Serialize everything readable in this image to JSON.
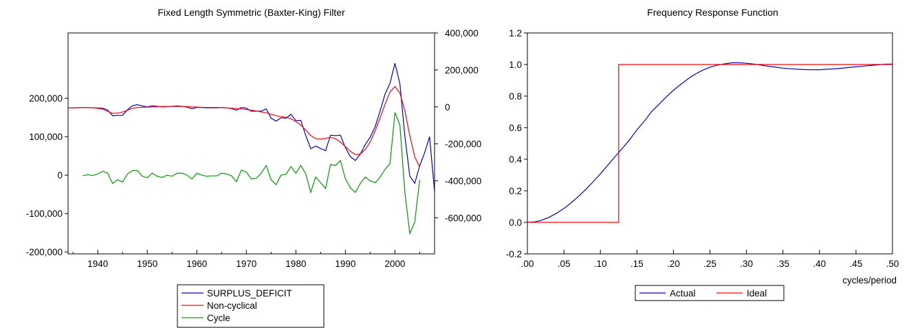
{
  "chart_data": [
    {
      "type": "line",
      "title": "Fixed Length Symmetric (Baxter-King) Filter",
      "xlabel": "",
      "xlim": [
        1934,
        2008
      ],
      "x_ticks": [
        1940,
        1950,
        1960,
        1970,
        1980,
        1990,
        2000
      ],
      "left_axis": {
        "ylim": [
          -200000,
          0
        ],
        "ylim_note": "",
        "ticks": [
          {
            "value": -200000,
            "label": "-200,000"
          },
          {
            "value": -100000,
            "label": "-100,000"
          },
          {
            "value": 0,
            "label": "0"
          },
          {
            "value": 100000,
            "label": "100,000"
          },
          {
            "value": 200000,
            "label": "200,000"
          }
        ],
        "range": [
          -205000,
          370000
        ]
      },
      "right_axis": {
        "range": [
          -795000,
          400000
        ],
        "ticks": [
          {
            "value": 400000,
            "label": "400,000"
          },
          {
            "value": 200000,
            "label": "200,000"
          },
          {
            "value": 0,
            "label": "0"
          },
          {
            "value": -200000,
            "label": "-200,000"
          },
          {
            "value": -400000,
            "label": "-400,000"
          },
          {
            "value": -600000,
            "label": "-600,000"
          }
        ]
      },
      "legend": [
        "SURPLUS_DEFICIT",
        "Non-cyclical",
        "Cycle"
      ],
      "legend_position": "bottom",
      "series": [
        {
          "name": "SURPLUS_DEFICIT",
          "axis": "right",
          "color": "#0000cc",
          "x": [
            1934,
            1935,
            1936,
            1937,
            1938,
            1939,
            1940,
            1941,
            1942,
            1943,
            1944,
            1945,
            1946,
            1947,
            1948,
            1949,
            1950,
            1951,
            1952,
            1953,
            1954,
            1955,
            1956,
            1957,
            1958,
            1959,
            1960,
            1961,
            1962,
            1963,
            1964,
            1965,
            1966,
            1967,
            1968,
            1969,
            1970,
            1971,
            1972,
            1973,
            1974,
            1975,
            1976,
            1977,
            1978,
            1979,
            1980,
            1981,
            1982,
            1983,
            1984,
            1985,
            1986,
            1987,
            1988,
            1989,
            1990,
            1991,
            1992,
            1993,
            1994,
            1995,
            1996,
            1997,
            1998,
            1999,
            2000,
            2001,
            2002,
            2003,
            2004,
            2005,
            2006,
            2007,
            2008
          ],
          "values": [
            -5000,
            -5000,
            -5000,
            -3000,
            -4000,
            -5000,
            -6000,
            -7000,
            -17000,
            -48000,
            -46000,
            -46000,
            -15000,
            6000,
            12000,
            5000,
            0,
            6000,
            3000,
            0,
            1000,
            3000,
            5000,
            3000,
            -1000,
            -10000,
            -3000,
            -3000,
            -5000,
            -5000,
            -5000,
            -3000,
            -5000,
            -9000,
            -18000,
            -3000,
            -7000,
            -23000,
            -23000,
            -23000,
            -11000,
            -61000,
            -77000,
            -59000,
            -61000,
            -40000,
            -74000,
            -73000,
            -155000,
            -226000,
            -212000,
            -225000,
            -237000,
            -153000,
            -156000,
            -153000,
            -221000,
            -269000,
            -290000,
            -255000,
            -204000,
            -164000,
            -107000,
            -22000,
            69000,
            128000,
            236000,
            125000,
            -158000,
            -374000,
            -413000,
            -318000,
            -248000,
            -161000,
            -459000
          ]
        },
        {
          "name": "Non-cyclical",
          "axis": "right",
          "color": "#ff0000",
          "x": [
            1934,
            1935,
            1936,
            1937,
            1938,
            1939,
            1940,
            1941,
            1942,
            1943,
            1944,
            1945,
            1946,
            1947,
            1948,
            1949,
            1950,
            1951,
            1952,
            1953,
            1954,
            1955,
            1956,
            1957,
            1958,
            1959,
            1960,
            1961,
            1962,
            1963,
            1964,
            1965,
            1966,
            1967,
            1968,
            1969,
            1970,
            1971,
            1972,
            1973,
            1974,
            1975,
            1976,
            1977,
            1978,
            1979,
            1980,
            1981,
            1982,
            1983,
            1984,
            1985,
            1986,
            1987,
            1988,
            1989,
            1990,
            1991,
            1992,
            1993,
            1994,
            1995,
            1996,
            1997,
            1998,
            1999,
            2000,
            2001,
            2002,
            2003,
            2004,
            2005
          ],
          "values": [
            -5000,
            -5000,
            -4000,
            -3000,
            -4000,
            -5000,
            -8000,
            -12000,
            -25000,
            -35000,
            -34000,
            -28000,
            -18000,
            -8000,
            -3000,
            -2000,
            -1000,
            0,
            1000,
            2000,
            2000,
            2000,
            2000,
            2000,
            1000,
            0,
            -1000,
            -2000,
            -3000,
            -3000,
            -3000,
            -4000,
            -5000,
            -7000,
            -9000,
            -11000,
            -14000,
            -18000,
            -22000,
            -27000,
            -32000,
            -40000,
            -48000,
            -52000,
            -56000,
            -64000,
            -80000,
            -98000,
            -125000,
            -155000,
            -172000,
            -175000,
            -170000,
            -165000,
            -172000,
            -190000,
            -215000,
            -240000,
            -258000,
            -255000,
            -230000,
            -190000,
            -130000,
            -60000,
            15000,
            80000,
            110000,
            75000,
            -20000,
            -155000,
            -270000,
            -325000
          ]
        },
        {
          "name": "Cycle",
          "axis": "left",
          "color": "#009900",
          "x": [
            1937,
            1938,
            1939,
            1940,
            1941,
            1942,
            1943,
            1944,
            1945,
            1946,
            1947,
            1948,
            1949,
            1950,
            1951,
            1952,
            1953,
            1954,
            1955,
            1956,
            1957,
            1958,
            1959,
            1960,
            1961,
            1962,
            1963,
            1964,
            1965,
            1966,
            1967,
            1968,
            1969,
            1970,
            1971,
            1972,
            1973,
            1974,
            1975,
            1976,
            1977,
            1978,
            1979,
            1980,
            1981,
            1982,
            1983,
            1984,
            1985,
            1986,
            1987,
            1988,
            1989,
            1990,
            1991,
            1992,
            1993,
            1994,
            1995,
            1996,
            1997,
            1998,
            1999,
            2000,
            2001,
            2002,
            2003,
            2004,
            2005
          ],
          "values": [
            -1000,
            1000,
            -1000,
            3000,
            10000,
            5000,
            -22000,
            -12000,
            -18000,
            3000,
            12000,
            12000,
            -3000,
            -7000,
            5000,
            -3000,
            -6000,
            0,
            -3000,
            5000,
            5000,
            0,
            -10000,
            5000,
            0,
            -3000,
            -2000,
            -2000,
            5000,
            3000,
            -2000,
            -17000,
            13000,
            8000,
            -10000,
            -8000,
            5000,
            25000,
            -12000,
            -25000,
            0,
            2000,
            22000,
            5000,
            25000,
            3000,
            -45000,
            -5000,
            -20000,
            -35000,
            28000,
            25000,
            38000,
            -10000,
            -33000,
            -45000,
            -22000,
            -5000,
            -15000,
            -20000,
            -5000,
            15000,
            30000,
            163000,
            130000,
            -45000,
            -152000,
            -122000,
            -12000
          ]
        }
      ]
    },
    {
      "type": "line",
      "title": "Frequency Response Function",
      "xlabel": "cycles/period",
      "ylabel": "",
      "xlim": [
        0,
        0.5
      ],
      "ylim": [
        -0.2,
        1.2
      ],
      "x_ticks": [
        {
          "value": 0.0,
          "label": ".00"
        },
        {
          "value": 0.05,
          "label": ".05"
        },
        {
          "value": 0.1,
          "label": ".10"
        },
        {
          "value": 0.15,
          "label": ".15"
        },
        {
          "value": 0.2,
          "label": ".20"
        },
        {
          "value": 0.25,
          "label": ".25"
        },
        {
          "value": 0.3,
          "label": ".30"
        },
        {
          "value": 0.35,
          "label": ".35"
        },
        {
          "value": 0.4,
          "label": ".40"
        },
        {
          "value": 0.45,
          "label": ".45"
        },
        {
          "value": 0.5,
          "label": ".50"
        }
      ],
      "y_ticks": [
        {
          "value": -0.2,
          "label": "-0.2"
        },
        {
          "value": 0.0,
          "label": "0.0"
        },
        {
          "value": 0.2,
          "label": "0.2"
        },
        {
          "value": 0.4,
          "label": "0.4"
        },
        {
          "value": 0.6,
          "label": "0.6"
        },
        {
          "value": 0.8,
          "label": "0.8"
        },
        {
          "value": 1.0,
          "label": "1.0"
        },
        {
          "value": 1.2,
          "label": "1.2"
        }
      ],
      "legend": [
        "Actual",
        "Ideal"
      ],
      "legend_position": "bottom",
      "series": [
        {
          "name": "Actual",
          "color": "#0000cc",
          "x": [
            0,
            0.01,
            0.02,
            0.03,
            0.04,
            0.05,
            0.06,
            0.07,
            0.08,
            0.09,
            0.1,
            0.11,
            0.12,
            0.13,
            0.14,
            0.15,
            0.16,
            0.17,
            0.18,
            0.19,
            0.2,
            0.21,
            0.22,
            0.23,
            0.24,
            0.25,
            0.26,
            0.27,
            0.28,
            0.29,
            0.3,
            0.31,
            0.32,
            0.33,
            0.34,
            0.35,
            0.36,
            0.37,
            0.38,
            0.39,
            0.4,
            0.41,
            0.42,
            0.43,
            0.44,
            0.45,
            0.46,
            0.47,
            0.48,
            0.49,
            0.5
          ],
          "values": [
            0.0,
            0.003,
            0.014,
            0.033,
            0.058,
            0.088,
            0.124,
            0.164,
            0.209,
            0.257,
            0.308,
            0.361,
            0.415,
            0.469,
            0.523,
            0.586,
            0.64,
            0.701,
            0.747,
            0.794,
            0.837,
            0.874,
            0.909,
            0.939,
            0.964,
            0.982,
            0.996,
            1.004,
            1.011,
            1.011,
            1.008,
            1.003,
            0.996,
            0.989,
            0.983,
            0.977,
            0.973,
            0.97,
            0.968,
            0.967,
            0.967,
            0.97,
            0.972,
            0.976,
            0.981,
            0.985,
            0.99,
            0.994,
            0.998,
            1.002,
            1.003
          ]
        },
        {
          "name": "Ideal",
          "color": "#ff0000",
          "x": [
            0,
            0.125,
            0.125,
            0.5
          ],
          "values": [
            0,
            0,
            1,
            1
          ]
        }
      ]
    }
  ]
}
